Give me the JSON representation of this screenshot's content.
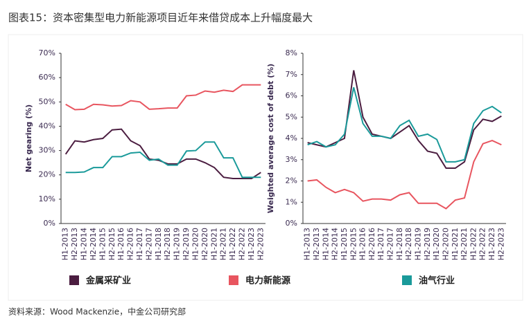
{
  "title": "图表15：资本密集型电力新能源项目近年来借贷成本上升幅度最大",
  "source": "资料来源：Wood Mackenzie，中金公司研究部",
  "chart_data": [
    {
      "type": "line",
      "y_label": "Net gearing (%)",
      "categories": [
        "H1-2013",
        "H2-2013",
        "H1-2014",
        "H2-2014",
        "H1-2015",
        "H2-2015",
        "H1-2016",
        "H2-2016",
        "H1-2017",
        "H2-2017",
        "H1-2018",
        "H2-2018",
        "H1-2019",
        "H2-2019",
        "H1-2020",
        "H2-2020",
        "H1-2021",
        "H2-2021",
        "H1-2022",
        "H2-2022",
        "H1-2023",
        "H2-2023"
      ],
      "ylim": [
        0,
        70
      ],
      "yticks": [
        {
          "value": 0,
          "label": "0%"
        },
        {
          "value": 10,
          "label": "10%"
        },
        {
          "value": 20,
          "label": "20%"
        },
        {
          "value": 30,
          "label": "30%"
        },
        {
          "value": 40,
          "label": "40%"
        },
        {
          "value": 50,
          "label": "50%"
        },
        {
          "value": 60,
          "label": "60%"
        },
        {
          "value": 70,
          "label": "70%"
        }
      ],
      "series": [
        {
          "name": "金属采矿业",
          "color": "#4b1d40",
          "values": [
            28.5,
            34,
            33.5,
            34.5,
            35,
            38.5,
            38.8,
            34,
            32,
            26.5,
            26,
            24.5,
            24.5,
            26.5,
            26.5,
            25,
            23,
            19,
            18.5,
            18.5,
            18.5,
            21
          ]
        },
        {
          "name": "电力新能源",
          "color": "#e8555f",
          "values": [
            49,
            46.8,
            47,
            49,
            48.8,
            48.3,
            48.5,
            50.5,
            50,
            47,
            47.2,
            47.5,
            47.5,
            52.5,
            52.8,
            54.5,
            54,
            54.8,
            54.3,
            57,
            57,
            57
          ]
        },
        {
          "name": "油气行业",
          "color": "#1a9a9a",
          "values": [
            21,
            21,
            21.2,
            23,
            23,
            27.5,
            27.5,
            29,
            29.3,
            26,
            26.5,
            24,
            24,
            29.8,
            30,
            33.5,
            33.5,
            27,
            27,
            19,
            19,
            19
          ]
        }
      ]
    },
    {
      "type": "line",
      "y_label": "Weighted average cost of debt (%)",
      "categories": [
        "H1-2013",
        "H2-2013",
        "H1-2014",
        "H2-2014",
        "H1-2015",
        "H2-2015",
        "H1-2016",
        "H2-2016",
        "H1-2017",
        "H2-2017",
        "H1-2018",
        "H2-2018",
        "H1-2019",
        "H2-2019",
        "H1-2020",
        "H2-2020",
        "H1-2021",
        "H2-2021",
        "H1-2022",
        "H2-2022",
        "H1-2023",
        "H2-2023"
      ],
      "ylim": [
        0,
        8
      ],
      "yticks": [
        {
          "value": 0,
          "label": "0%"
        },
        {
          "value": 1,
          "label": "1%"
        },
        {
          "value": 2,
          "label": "2%"
        },
        {
          "value": 3,
          "label": "3%"
        },
        {
          "value": 4,
          "label": "4%"
        },
        {
          "value": 5,
          "label": "5%"
        },
        {
          "value": 6,
          "label": "6%"
        },
        {
          "value": 7,
          "label": "7%"
        },
        {
          "value": 8,
          "label": "8%"
        }
      ],
      "series": [
        {
          "name": "金属采矿业",
          "color": "#4b1d40",
          "values": [
            3.8,
            3.7,
            3.6,
            3.8,
            4.0,
            7.2,
            5.0,
            4.2,
            4.1,
            4.0,
            4.3,
            4.6,
            3.9,
            3.4,
            3.3,
            2.6,
            2.6,
            2.9,
            4.4,
            4.9,
            4.8,
            5.05
          ]
        },
        {
          "name": "电力新能源",
          "color": "#e8555f",
          "values": [
            2.0,
            2.05,
            1.7,
            1.45,
            1.6,
            1.45,
            1.05,
            1.15,
            1.15,
            1.1,
            1.35,
            1.45,
            0.95,
            0.95,
            0.95,
            0.7,
            1.1,
            1.2,
            2.9,
            3.75,
            3.9,
            3.7
          ]
        },
        {
          "name": "油气行业",
          "color": "#1a9a9a",
          "values": [
            3.7,
            3.85,
            3.6,
            3.7,
            4.2,
            6.4,
            4.7,
            4.1,
            4.1,
            4.0,
            4.6,
            4.85,
            4.1,
            4.2,
            3.95,
            2.9,
            2.9,
            3.0,
            4.7,
            5.3,
            5.5,
            5.2
          ]
        }
      ]
    }
  ]
}
